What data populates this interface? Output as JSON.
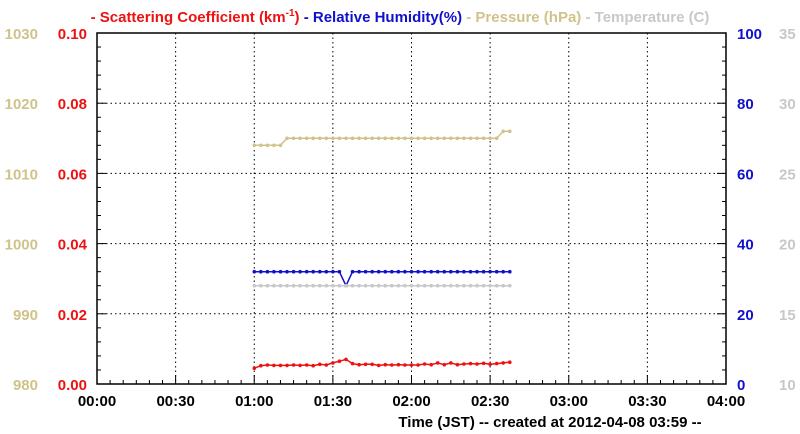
{
  "chart_data": {
    "type": "line",
    "legend": [
      {
        "dash": "- ",
        "label": "Scattering Coefficient (km",
        "sup": "-1",
        "suffix": ")",
        "color": "#ee1111"
      },
      {
        "dash": " - ",
        "label": "Relative Humidity(%)",
        "sup": "",
        "suffix": "",
        "color": "#1111cc"
      },
      {
        "dash": " - ",
        "label": "Pressure (hPa)",
        "sup": "",
        "suffix": "",
        "color": "#cfc38a"
      },
      {
        "dash": " - ",
        "label": "Temperature (C)",
        "sup": "",
        "suffix": "",
        "color": "#c8c8c8"
      }
    ],
    "xlabel": "Time (JST)  -- created at 2012-04-08 03:59 --",
    "x_range_minutes": [
      0,
      240
    ],
    "x_ticks": [
      {
        "t": 0,
        "label": "00:00"
      },
      {
        "t": 30,
        "label": "00:30"
      },
      {
        "t": 60,
        "label": "01:00"
      },
      {
        "t": 90,
        "label": "01:30"
      },
      {
        "t": 120,
        "label": "02:00"
      },
      {
        "t": 150,
        "label": "02:30"
      },
      {
        "t": 180,
        "label": "03:00"
      },
      {
        "t": 210,
        "label": "03:30"
      },
      {
        "t": 240,
        "label": "04:00"
      }
    ],
    "axes": {
      "pressure": {
        "range": [
          980,
          1030
        ],
        "ticks": [
          "980",
          "990",
          "1000",
          "1010",
          "1020",
          "1030"
        ],
        "color": "#cfc38a"
      },
      "scattering": {
        "range": [
          0,
          0.1
        ],
        "ticks": [
          "0.00",
          "0.02",
          "0.04",
          "0.06",
          "0.08",
          "0.10"
        ],
        "color": "#ee1111"
      },
      "humidity": {
        "range": [
          0,
          100
        ],
        "ticks": [
          "0",
          "20",
          "40",
          "60",
          "80",
          "100"
        ],
        "color": "#1111cc"
      },
      "temperature": {
        "range": [
          10,
          35
        ],
        "ticks": [
          "10",
          "15",
          "20",
          "25",
          "30",
          "35"
        ],
        "color": "#c8c8c8"
      }
    },
    "grid": true,
    "series": [
      {
        "key": "pressure",
        "axis": "pressure",
        "color": "#cfc38a",
        "t0": 60,
        "dt": 2.5,
        "values": [
          1014,
          1014,
          1014,
          1014,
          1014,
          1015,
          1015,
          1015,
          1015,
          1015,
          1015,
          1015,
          1015,
          1015,
          1015,
          1015,
          1015,
          1015,
          1015,
          1015,
          1015,
          1015,
          1015,
          1015,
          1015,
          1015,
          1015,
          1015,
          1015,
          1015,
          1015,
          1015,
          1015,
          1015,
          1015,
          1015,
          1015,
          1015,
          1016,
          1016
        ]
      },
      {
        "key": "humidity",
        "axis": "humidity",
        "color": "#1111cc",
        "t0": 60,
        "dt": 2.5,
        "values": [
          32,
          32,
          32,
          32,
          32,
          32,
          32,
          32,
          32,
          32,
          32,
          32,
          32,
          32,
          28,
          32,
          32,
          32,
          32,
          32,
          32,
          32,
          32,
          32,
          32,
          32,
          32,
          32,
          32,
          32,
          32,
          32,
          32,
          32,
          32,
          32,
          32,
          32,
          32,
          32
        ]
      },
      {
        "key": "temperature",
        "axis": "temperature",
        "color": "#c8c8c8",
        "t0": 60,
        "dt": 2.5,
        "values": [
          17,
          17,
          17,
          17,
          17,
          17,
          17,
          17,
          17,
          17,
          17,
          17,
          17,
          17,
          17,
          17,
          17,
          17,
          17,
          17,
          17,
          17,
          17,
          17,
          17,
          17,
          17,
          17,
          17,
          17,
          17,
          17,
          17,
          17,
          17,
          17,
          17,
          17,
          17,
          17
        ]
      },
      {
        "key": "scattering",
        "axis": "scattering",
        "color": "#ee1111",
        "t0": 60,
        "dt": 2.5,
        "values": [
          0.0045,
          0.0052,
          0.0054,
          0.0053,
          0.0053,
          0.0053,
          0.0054,
          0.0053,
          0.0054,
          0.0052,
          0.0056,
          0.0054,
          0.006,
          0.0065,
          0.007,
          0.0058,
          0.0055,
          0.0056,
          0.0056,
          0.0053,
          0.0055,
          0.0054,
          0.0055,
          0.0054,
          0.0054,
          0.0054,
          0.0057,
          0.0055,
          0.006,
          0.0055,
          0.006,
          0.0055,
          0.0057,
          0.0058,
          0.0057,
          0.0059,
          0.0056,
          0.0058,
          0.006,
          0.0062
        ]
      }
    ]
  }
}
